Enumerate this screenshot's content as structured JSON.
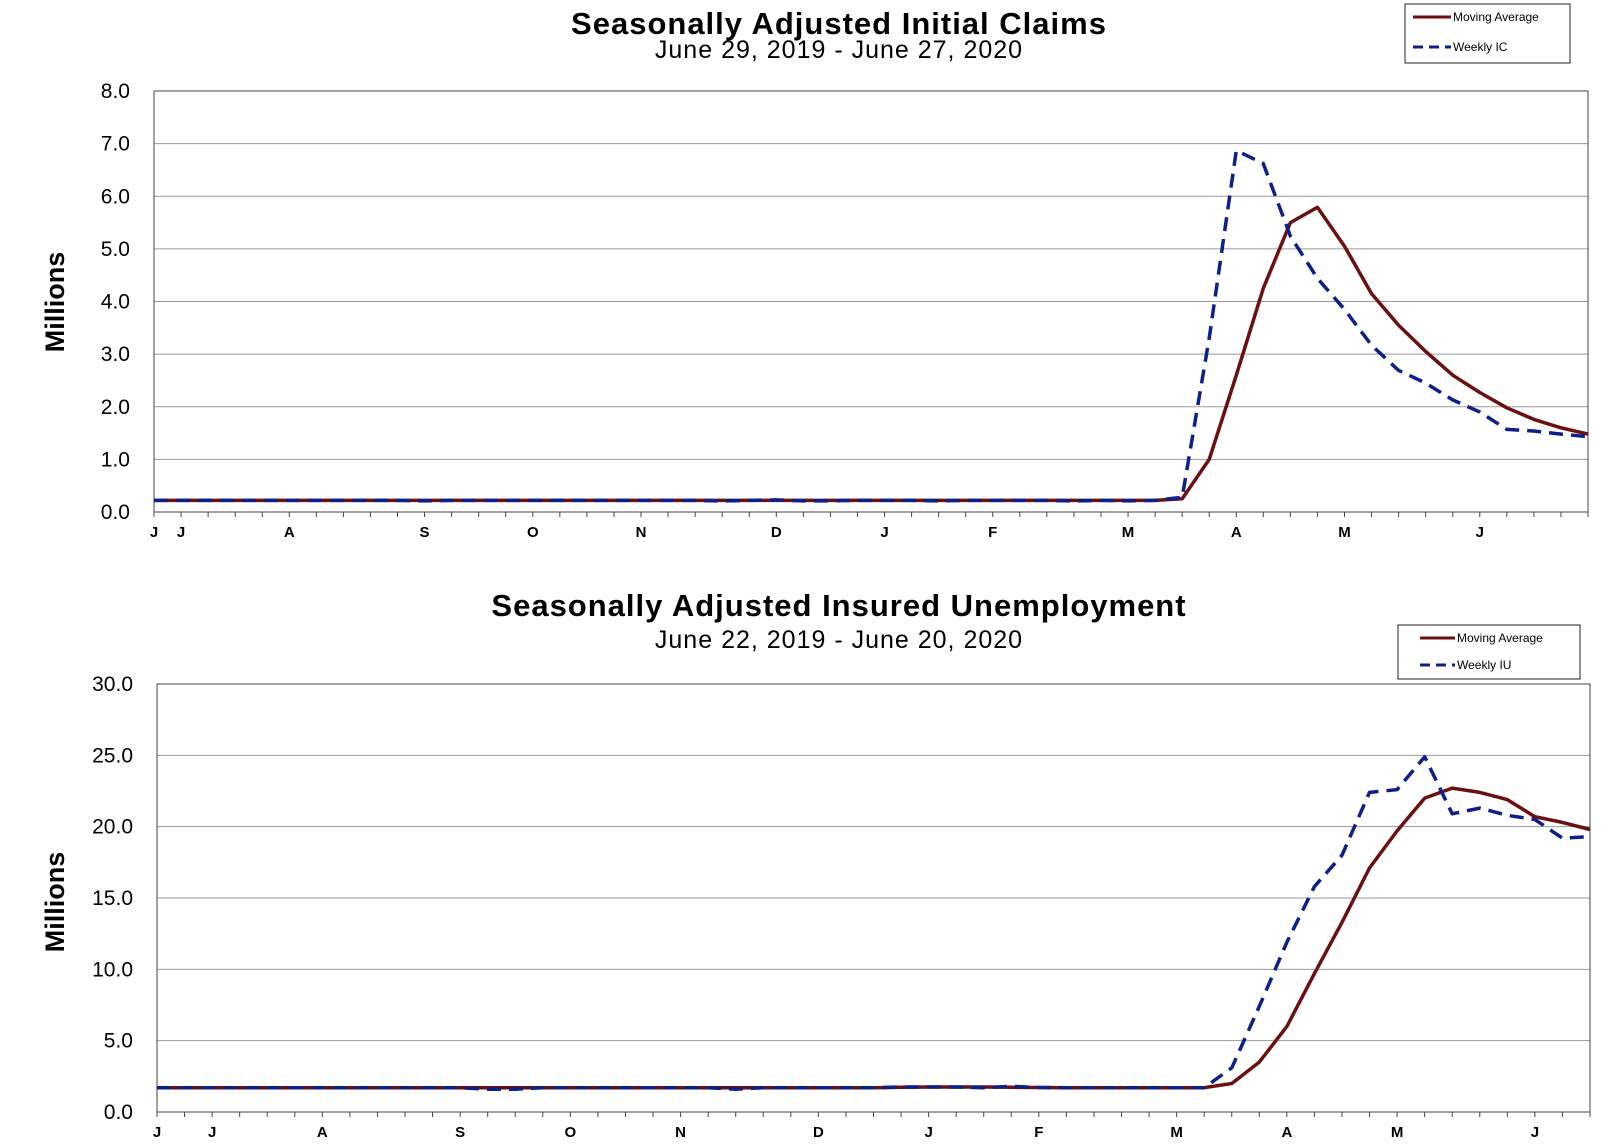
{
  "chart_data": [
    {
      "type": "line",
      "title": "Seasonally Adjusted Initial Claims",
      "subtitle": "June 29, 2019 - June 27, 2020",
      "ylabel": "Millions",
      "ylim": [
        0,
        8
      ],
      "y_ticks": [
        "0.0",
        "1.0",
        "2.0",
        "3.0",
        "4.0",
        "5.0",
        "6.0",
        "7.0",
        "8.0"
      ],
      "x_month_labels": [
        {
          "label": "J",
          "week": 0
        },
        {
          "label": "J",
          "week": 1
        },
        {
          "label": "A",
          "week": 5
        },
        {
          "label": "S",
          "week": 10
        },
        {
          "label": "O",
          "week": 14
        },
        {
          "label": "N",
          "week": 18
        },
        {
          "label": "D",
          "week": 23
        },
        {
          "label": "J",
          "week": 27
        },
        {
          "label": "F",
          "week": 31
        },
        {
          "label": "M",
          "week": 36
        },
        {
          "label": "A",
          "week": 40
        },
        {
          "label": "M",
          "week": 44
        },
        {
          "label": "J",
          "week": 49
        }
      ],
      "grid": true,
      "legend_position": "top-right",
      "series": [
        {
          "name": "Moving Average",
          "color": "#6b0f0f",
          "dash": false,
          "values": [
            0.22,
            0.22,
            0.22,
            0.22,
            0.22,
            0.22,
            0.22,
            0.22,
            0.22,
            0.22,
            0.22,
            0.22,
            0.22,
            0.22,
            0.22,
            0.22,
            0.22,
            0.22,
            0.22,
            0.22,
            0.22,
            0.22,
            0.22,
            0.22,
            0.22,
            0.22,
            0.22,
            0.22,
            0.22,
            0.22,
            0.22,
            0.22,
            0.22,
            0.22,
            0.22,
            0.22,
            0.22,
            0.22,
            0.25,
            1.0,
            2.6,
            4.25,
            5.5,
            5.79,
            5.05,
            4.15,
            3.55,
            3.05,
            2.6,
            2.27,
            1.98,
            1.76,
            1.6,
            1.48
          ]
        },
        {
          "name": "Weekly IC",
          "color": "#0c1f8a",
          "dash": true,
          "values": [
            0.22,
            0.22,
            0.22,
            0.22,
            0.22,
            0.22,
            0.22,
            0.22,
            0.22,
            0.22,
            0.21,
            0.22,
            0.22,
            0.22,
            0.22,
            0.22,
            0.22,
            0.22,
            0.22,
            0.22,
            0.22,
            0.21,
            0.22,
            0.23,
            0.21,
            0.21,
            0.22,
            0.22,
            0.22,
            0.21,
            0.22,
            0.22,
            0.22,
            0.22,
            0.21,
            0.22,
            0.21,
            0.22,
            0.28,
            3.3,
            6.87,
            6.62,
            5.24,
            4.44,
            3.85,
            3.17,
            2.69,
            2.45,
            2.13,
            1.9,
            1.57,
            1.54,
            1.48,
            1.43
          ]
        }
      ]
    },
    {
      "type": "line",
      "title": "Seasonally Adjusted Insured Unemployment",
      "subtitle": "June 22, 2019 - June 20, 2020",
      "ylabel": "Millions",
      "ylim": [
        0,
        30
      ],
      "y_ticks": [
        "0.0",
        "5.0",
        "10.0",
        "15.0",
        "20.0",
        "25.0",
        "30.0"
      ],
      "x_month_labels": [
        {
          "label": "J",
          "week": 0
        },
        {
          "label": "J",
          "week": 2
        },
        {
          "label": "A",
          "week": 6
        },
        {
          "label": "S",
          "week": 11
        },
        {
          "label": "O",
          "week": 15
        },
        {
          "label": "N",
          "week": 19
        },
        {
          "label": "D",
          "week": 24
        },
        {
          "label": "J",
          "week": 28
        },
        {
          "label": "F",
          "week": 32
        },
        {
          "label": "M",
          "week": 37
        },
        {
          "label": "A",
          "week": 41
        },
        {
          "label": "M",
          "week": 45
        },
        {
          "label": "J",
          "week": 50
        }
      ],
      "grid": true,
      "legend_position": "top-right",
      "series": [
        {
          "name": "Moving Average",
          "color": "#6b0f0f",
          "dash": false,
          "values": [
            1.7,
            1.7,
            1.7,
            1.7,
            1.7,
            1.7,
            1.7,
            1.7,
            1.7,
            1.7,
            1.7,
            1.7,
            1.7,
            1.7,
            1.7,
            1.7,
            1.7,
            1.7,
            1.7,
            1.7,
            1.7,
            1.7,
            1.7,
            1.7,
            1.7,
            1.7,
            1.7,
            1.73,
            1.75,
            1.75,
            1.75,
            1.73,
            1.72,
            1.7,
            1.7,
            1.7,
            1.7,
            1.7,
            1.7,
            2.0,
            3.5,
            6.0,
            9.7,
            13.3,
            17.1,
            19.7,
            22.0,
            22.7,
            22.4,
            21.9,
            20.7,
            20.3,
            19.8
          ]
        },
        {
          "name": "Weekly IU",
          "color": "#0c1f8a",
          "dash": true,
          "values": [
            1.7,
            1.7,
            1.7,
            1.7,
            1.7,
            1.7,
            1.7,
            1.7,
            1.7,
            1.7,
            1.7,
            1.7,
            1.6,
            1.6,
            1.7,
            1.7,
            1.7,
            1.7,
            1.7,
            1.7,
            1.7,
            1.6,
            1.7,
            1.7,
            1.7,
            1.7,
            1.7,
            1.75,
            1.75,
            1.75,
            1.7,
            1.8,
            1.72,
            1.7,
            1.7,
            1.7,
            1.7,
            1.7,
            1.7,
            3.1,
            7.4,
            11.9,
            15.8,
            18.0,
            22.4,
            22.6,
            24.9,
            20.9,
            21.3,
            20.8,
            20.5,
            19.2,
            19.3
          ]
        }
      ]
    }
  ]
}
